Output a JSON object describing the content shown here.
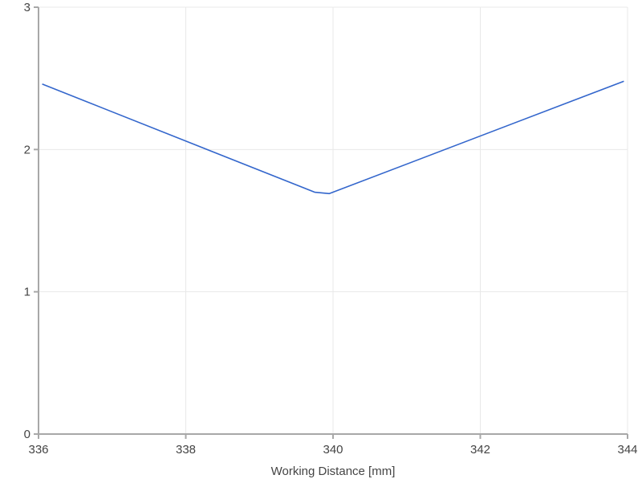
{
  "chart_data": {
    "type": "line",
    "title": "",
    "xlabel": "Working Distance [mm]",
    "ylabel": "",
    "xlim": [
      336,
      344
    ],
    "ylim": [
      0,
      3
    ],
    "x_ticks": [
      "336",
      "338",
      "340",
      "342",
      "344"
    ],
    "y_ticks": [
      "0",
      "1",
      "2",
      "3"
    ],
    "grid": true,
    "legend": "none",
    "series": [
      {
        "color": "#3366cc",
        "x": [
          336.05,
          339.75,
          339.95,
          343.95
        ],
        "y": [
          2.46,
          1.7,
          1.69,
          2.48
        ]
      }
    ]
  }
}
